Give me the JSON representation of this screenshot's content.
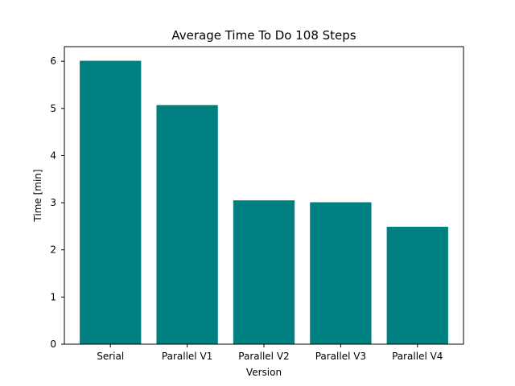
{
  "chart_data": {
    "type": "bar",
    "title": "Average Time To Do 108 Steps",
    "xlabel": "Version",
    "ylabel": "Time [min]",
    "categories": [
      "Serial",
      "Parallel V1",
      "Parallel V2",
      "Parallel V3",
      "Parallel V4"
    ],
    "values": [
      6.01,
      5.07,
      3.05,
      3.01,
      2.49
    ],
    "ylim": [
      0,
      6.31
    ],
    "yticks": [
      0,
      1,
      2,
      3,
      4,
      5,
      6
    ],
    "bar_color": "#008080",
    "grid": false,
    "legend": "none"
  }
}
